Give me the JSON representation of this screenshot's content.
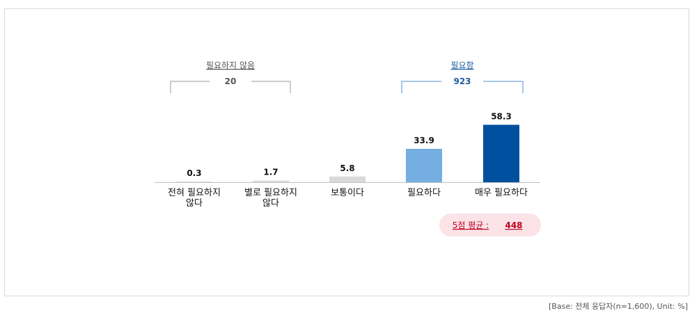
{
  "chart_data": {
    "type": "bar",
    "categories": [
      "전혀 필요하지\n않다",
      "별로 필요하지\n않다",
      "보통이다",
      "필요하다",
      "매우 필요하다"
    ],
    "values": [
      0.3,
      1.7,
      5.8,
      33.9,
      58.3
    ],
    "value_labels": [
      "0.3",
      "1.7",
      "5.8",
      "33.9",
      "58.3"
    ],
    "ylim": [
      0,
      60
    ],
    "groups": [
      {
        "label": "필요하지 않음",
        "value": "20",
        "covers": [
          0,
          1
        ]
      },
      {
        "label": "필요함",
        "value": "923",
        "covers": [
          3,
          4
        ]
      }
    ],
    "average": {
      "label": "5점 평균 :",
      "value": "448"
    },
    "bar_colors": [
      "#d9d9d9",
      "#d9d9d9",
      "#d9d9d9",
      "#74aee0",
      "#0050a0"
    ]
  },
  "colors": {
    "not_needed_group": "#888888",
    "needed_group": "#4a8fd0",
    "needed_value": "#1f5c9e",
    "average_text": "#c0001f",
    "average_bg": "#fbe3e8"
  },
  "footer": {
    "base_note": "[Base: 전체 응답자(n=1,600), Unit: %]"
  }
}
